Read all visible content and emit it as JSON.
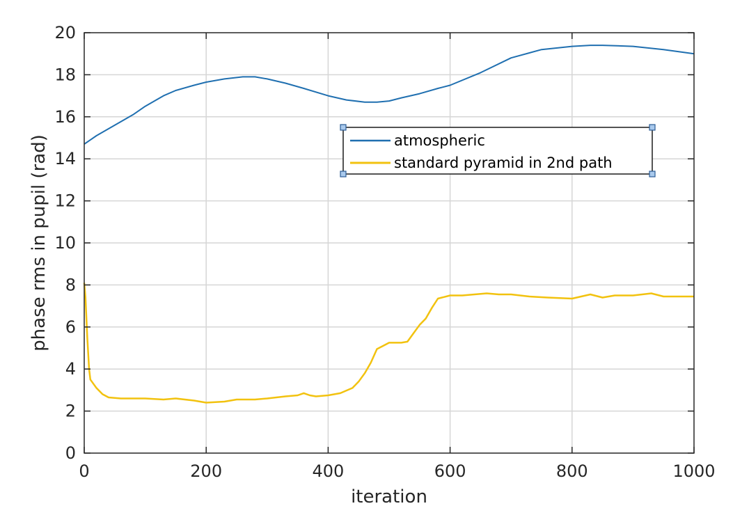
{
  "chart_data": {
    "type": "line",
    "xlabel": "iteration",
    "ylabel": "phase rms in pupil (rad)",
    "xlim": [
      0,
      1000
    ],
    "ylim": [
      0,
      20
    ],
    "xticks": [
      "0",
      "200",
      "400",
      "600",
      "800",
      "1000"
    ],
    "yticks": [
      "0",
      "2",
      "4",
      "6",
      "8",
      "10",
      "12",
      "14",
      "16",
      "18",
      "20"
    ],
    "grid": true,
    "legend_position": "upper-center-right (selected legend box with resize handles)",
    "colors": {
      "atmospheric": "#1f6fb0",
      "pyramid": "#f2c20f",
      "grid": "#d6d6d6",
      "axes": "#262626"
    },
    "series": [
      {
        "name": "atmospheric",
        "x": [
          0,
          20,
          50,
          80,
          100,
          130,
          150,
          180,
          200,
          230,
          260,
          280,
          300,
          330,
          360,
          400,
          430,
          460,
          480,
          500,
          520,
          550,
          580,
          600,
          650,
          700,
          750,
          800,
          830,
          850,
          900,
          950,
          1000
        ],
        "y": [
          14.7,
          15.1,
          15.6,
          16.1,
          16.5,
          17.0,
          17.25,
          17.5,
          17.65,
          17.8,
          17.9,
          17.9,
          17.8,
          17.6,
          17.35,
          17.0,
          16.8,
          16.7,
          16.7,
          16.75,
          16.9,
          17.1,
          17.35,
          17.5,
          18.1,
          18.8,
          19.2,
          19.35,
          19.4,
          19.4,
          19.35,
          19.2,
          19.0
        ]
      },
      {
        "name": "standard pyramid in 2nd path",
        "x": [
          0,
          2,
          5,
          8,
          10,
          15,
          20,
          30,
          40,
          60,
          80,
          100,
          130,
          150,
          180,
          200,
          230,
          250,
          280,
          300,
          330,
          350,
          360,
          370,
          380,
          400,
          420,
          440,
          450,
          460,
          470,
          480,
          490,
          500,
          520,
          530,
          540,
          550,
          560,
          570,
          580,
          600,
          620,
          640,
          660,
          680,
          700,
          730,
          760,
          800,
          830,
          850,
          870,
          900,
          930,
          950,
          1000
        ],
        "y": [
          8.1,
          7.4,
          5.5,
          4.0,
          3.5,
          3.3,
          3.1,
          2.8,
          2.65,
          2.6,
          2.6,
          2.6,
          2.55,
          2.6,
          2.5,
          2.4,
          2.45,
          2.55,
          2.55,
          2.6,
          2.7,
          2.75,
          2.85,
          2.75,
          2.7,
          2.75,
          2.85,
          3.1,
          3.4,
          3.8,
          4.3,
          4.95,
          5.1,
          5.25,
          5.25,
          5.3,
          5.7,
          6.1,
          6.4,
          6.9,
          7.35,
          7.5,
          7.5,
          7.55,
          7.6,
          7.55,
          7.55,
          7.45,
          7.4,
          7.35,
          7.55,
          7.4,
          7.5,
          7.5,
          7.6,
          7.45,
          7.45
        ]
      }
    ]
  }
}
